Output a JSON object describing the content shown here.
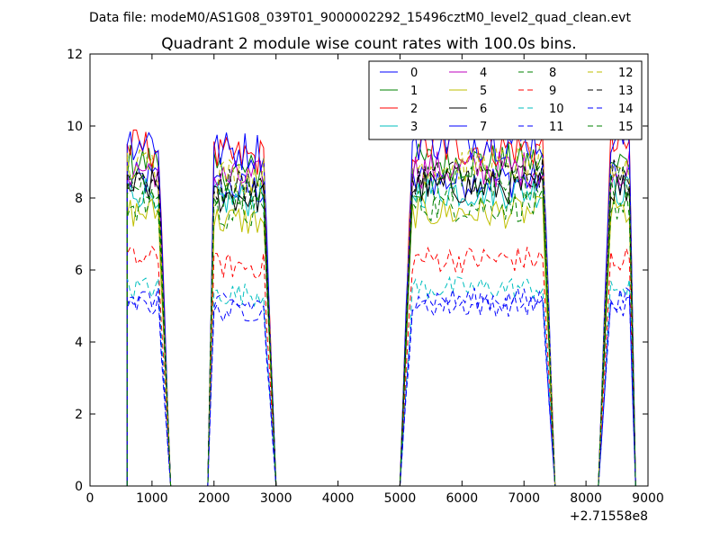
{
  "chart_data": {
    "type": "line",
    "suptitle": "Data file: modeM0/AS1G08_039T01_9000002292_15496cztM0_level2_quad_clean.evt",
    "title": "Quadrant 2 module wise count rates with 100.0s bins.",
    "xlabel": "",
    "ylabel": "",
    "x_offset_label": "+2.71558e8",
    "xlim": [
      0,
      9000
    ],
    "ylim": [
      0,
      12
    ],
    "xticks": [
      0,
      1000,
      2000,
      3000,
      4000,
      5000,
      6000,
      7000,
      8000,
      9000
    ],
    "yticks": [
      0,
      2,
      4,
      6,
      8,
      10,
      12
    ],
    "legend_position": "top-right",
    "legend_columns": 4,
    "series": [
      {
        "name": "0",
        "color": "#0000ff",
        "dash": "solid",
        "level": 8.5
      },
      {
        "name": "1",
        "color": "#008000",
        "dash": "solid",
        "level": 9.0
      },
      {
        "name": "2",
        "color": "#ff0000",
        "dash": "solid",
        "level": 9.4
      },
      {
        "name": "3",
        "color": "#00bfbf",
        "dash": "solid",
        "level": 8.2
      },
      {
        "name": "4",
        "color": "#bf00bf",
        "dash": "solid",
        "level": 8.8
      },
      {
        "name": "5",
        "color": "#bfbf00",
        "dash": "solid",
        "level": 7.6
      },
      {
        "name": "6",
        "color": "#000000",
        "dash": "solid",
        "level": 8.3
      },
      {
        "name": "7",
        "color": "#0000ff",
        "dash": "solid",
        "level": 9.6
      },
      {
        "name": "8",
        "color": "#008000",
        "dash": "dashed",
        "level": 7.8
      },
      {
        "name": "9",
        "color": "#ff0000",
        "dash": "dashed",
        "level": 6.3
      },
      {
        "name": "10",
        "color": "#00bfbf",
        "dash": "dashed",
        "level": 5.5
      },
      {
        "name": "11",
        "color": "#0000ff",
        "dash": "dashed",
        "level": 5.0
      },
      {
        "name": "12",
        "color": "#bfbf00",
        "dash": "dashed",
        "level": 8.9
      },
      {
        "name": "13",
        "color": "#000000",
        "dash": "dashed",
        "level": 8.6
      },
      {
        "name": "14",
        "color": "#0000ff",
        "dash": "dashed",
        "level": 5.2
      },
      {
        "name": "15",
        "color": "#008000",
        "dash": "dashed",
        "level": 8.4
      }
    ],
    "segments": [
      {
        "start": 600,
        "end": 1300,
        "rise_end": 600,
        "fall_start": 1100
      },
      {
        "start": 1900,
        "end": 3000,
        "rise_end": 2000,
        "fall_start": 2800
      },
      {
        "start": 5000,
        "end": 7500,
        "rise_end": 5200,
        "fall_start": 7300
      },
      {
        "start": 8200,
        "end": 8800,
        "rise_end": 8400,
        "fall_start": 8700
      }
    ],
    "bin_size": 100
  }
}
